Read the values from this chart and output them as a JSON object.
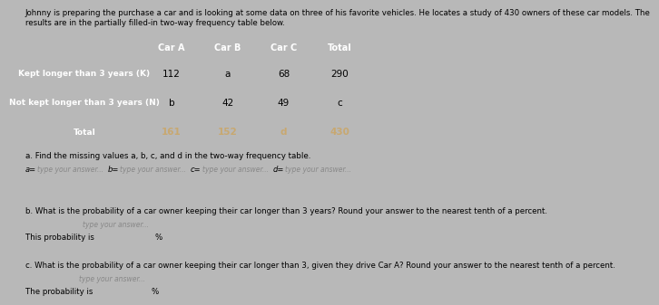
{
  "title_line1": "Johnny is preparing the purchase a car and is looking at some data on three of his favorite vehicles. He locates a study of 430 owners of these car models. The",
  "title_line2": "results are in the partially filled-in two-way frequency table below.",
  "col_headers": [
    "",
    "Car A",
    "Car B",
    "Car C",
    "Total"
  ],
  "rows": [
    [
      "Kept longer than 3 years (K)",
      "112",
      "a",
      "68",
      "290"
    ],
    [
      "Not kept longer than 3 years (N)",
      "b",
      "42",
      "49",
      "c"
    ],
    [
      "Total",
      "161",
      "152",
      "d",
      "430"
    ]
  ],
  "header_bg": "#3d3d6b",
  "header_fg": "#ffffff",
  "row0_label_bg": "#3d3d6b",
  "row0_label_fg": "#ffffff",
  "row0_data_bg": "#c8c8dc",
  "row0_data_fg": "#000000",
  "row1_label_bg": "#3d3d6b",
  "row1_label_fg": "#ffffff",
  "row1_data_bg": "#b0b0cc",
  "row1_data_fg": "#000000",
  "row2_label_bg": "#3d3d6b",
  "row2_label_fg": "#ffffff",
  "row2_data_bg": "#3d3d6b",
  "row2_data_fg": "#c8a870",
  "bg_color": "#b8b8b8",
  "table_border_color": "#ffffff",
  "answer_box_bg": "#d8d8d8",
  "answer_box_fg": "#888888",
  "answer_box_border": "#aaaaaa"
}
